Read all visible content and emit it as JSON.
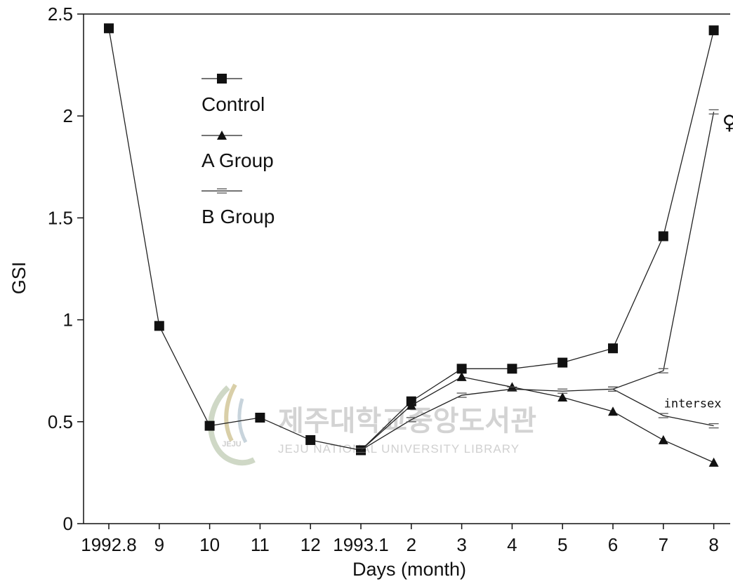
{
  "chart_data": {
    "type": "line",
    "title": "",
    "xlabel": "Days (month)",
    "ylabel": "GSI",
    "ylim": [
      0,
      2.5
    ],
    "yticks": [
      "0",
      "0.5",
      "1",
      "1.5",
      "2",
      "2.5"
    ],
    "categories": [
      "1992.8",
      "9",
      "10",
      "11",
      "12",
      "1993.1",
      "2",
      "3",
      "4",
      "5",
      "6",
      "7",
      "8"
    ],
    "grid": false,
    "legend_position": "top-left",
    "series": [
      {
        "name": "Control",
        "marker": "square",
        "x": [
          0,
          1,
          2,
          3,
          4,
          5,
          6,
          7,
          8,
          9,
          10,
          11,
          12
        ],
        "values": [
          2.43,
          0.97,
          0.48,
          0.52,
          0.41,
          0.36,
          0.6,
          0.76,
          0.76,
          0.79,
          0.86,
          1.41,
          2.42
        ]
      },
      {
        "name": "A Group",
        "marker": "triangle",
        "x": [
          5,
          6,
          7,
          8,
          9,
          10,
          11,
          12
        ],
        "values": [
          0.36,
          0.58,
          0.72,
          0.67,
          0.62,
          0.55,
          0.41,
          0.3
        ]
      },
      {
        "name": "B Group",
        "marker": "bar",
        "x": [
          5,
          6,
          7,
          8,
          9,
          10,
          11,
          12
        ],
        "values": [
          0.36,
          0.51,
          0.63,
          0.66,
          0.65,
          0.66,
          0.75,
          2.02
        ]
      },
      {
        "name": "",
        "marker": "bar",
        "x": [
          10,
          11,
          12
        ],
        "values": [
          0.66,
          0.53,
          0.48
        ]
      }
    ],
    "annotations": [
      {
        "text": "♀",
        "x": 12,
        "y": 1.97
      },
      {
        "text": "intersex",
        "x": 12,
        "y": 0.59
      }
    ]
  },
  "watermark": {
    "korean": "제주대학교중앙도서관",
    "english": "JEJU NATIONAL UNIVERSITY LIBRARY",
    "logo_text": "JEJU"
  }
}
